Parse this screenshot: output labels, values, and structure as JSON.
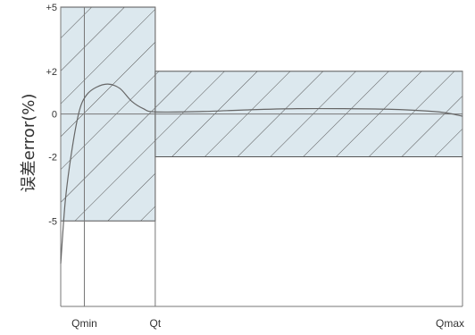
{
  "chart_data": {
    "type": "line",
    "title": "",
    "xlabel": "",
    "ylabel": "误差error(%)",
    "ylim": [
      -9,
      5
    ],
    "x_ticks": [
      {
        "label": "Qmin",
        "value": 1
      },
      {
        "label": "Qt",
        "value": 4
      },
      {
        "label": "Qmax",
        "value": 17
      }
    ],
    "y_ticks": [
      {
        "label": "+5",
        "value": 5
      },
      {
        "label": "+2",
        "value": 2
      },
      {
        "label": "0",
        "value": 0
      },
      {
        "label": "-2",
        "value": -2
      },
      {
        "label": "-5",
        "value": -5
      }
    ],
    "xlim": [
      0,
      17
    ],
    "tolerance_zones": [
      {
        "x": [
          0,
          4
        ],
        "y": [
          -5,
          5
        ]
      },
      {
        "x": [
          4,
          17
        ],
        "y": [
          -2,
          2
        ]
      }
    ],
    "series": [
      {
        "values": [
          [
            0.0,
            -7.0
          ],
          [
            0.2,
            -4.0
          ],
          [
            0.5,
            -1.5
          ],
          [
            0.8,
            0.2
          ],
          [
            1.1,
            0.9
          ],
          [
            1.5,
            1.25
          ],
          [
            2.0,
            1.4
          ],
          [
            2.5,
            1.2
          ],
          [
            3.0,
            0.6
          ],
          [
            3.5,
            0.25
          ],
          [
            4.0,
            0.1
          ],
          [
            6.0,
            0.12
          ],
          [
            8.0,
            0.2
          ],
          [
            10.0,
            0.25
          ],
          [
            12.0,
            0.25
          ],
          [
            14.0,
            0.22
          ],
          [
            16.0,
            0.1
          ],
          [
            17.0,
            -0.1
          ]
        ]
      }
    ],
    "colors": {
      "zone_fill": "#dce8ee",
      "zone_edge": "#555555",
      "hatch": "#555555",
      "line": "#666666",
      "axis": "#777777",
      "text": "#333333"
    }
  }
}
